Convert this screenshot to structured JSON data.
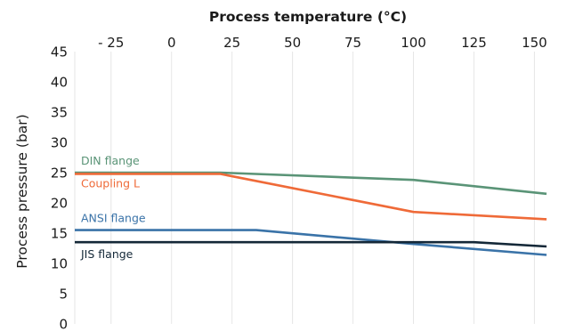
{
  "chart_data": {
    "type": "line",
    "xlabel": "Process temperature (°C)",
    "ylabel": "Process pressure (bar)",
    "x_ticks": [
      -25,
      0,
      25,
      50,
      75,
      100,
      125,
      150
    ],
    "x_tick_labels": [
      "- 25",
      "0",
      "25",
      "50",
      "75",
      "100",
      "125",
      "150"
    ],
    "y_ticks": [
      0,
      5,
      10,
      15,
      20,
      25,
      30,
      35,
      40,
      45
    ],
    "y_tick_labels": [
      "0",
      "5",
      "10",
      "15",
      "20",
      "25",
      "30",
      "35",
      "40",
      "45"
    ],
    "xlim": [
      -40,
      155
    ],
    "ylim": [
      0,
      45
    ],
    "grid": "vertical",
    "x_axis_position": "top",
    "series": [
      {
        "name": "DIN flange",
        "color": "#5a9477",
        "x": [
          -40,
          20,
          100,
          155
        ],
        "y": [
          25,
          25,
          23.8,
          21.5
        ]
      },
      {
        "name": "Coupling L",
        "color": "#ef6a38",
        "x": [
          -40,
          20,
          100,
          155
        ],
        "y": [
          24.8,
          24.8,
          18.5,
          17.3
        ]
      },
      {
        "name": "ANSI flange",
        "color": "#3a73a8",
        "x": [
          -40,
          35,
          100,
          155
        ],
        "y": [
          15.5,
          15.5,
          13.2,
          11.4
        ]
      },
      {
        "name": "JIS flange",
        "color": "#142838",
        "x": [
          -40,
          125,
          155
        ],
        "y": [
          13.5,
          13.5,
          12.8
        ]
      }
    ]
  }
}
